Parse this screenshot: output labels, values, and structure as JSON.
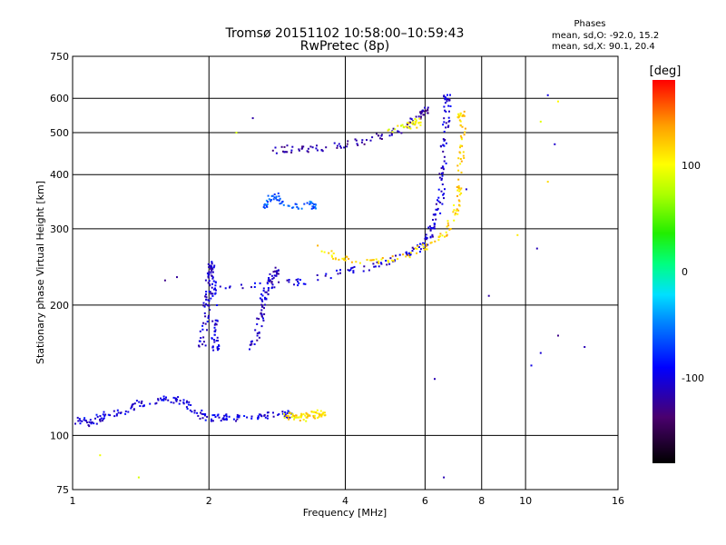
{
  "chart_data": {
    "type": "scatter",
    "title": "Tromsø 20151102 10:58:00–10:59:43",
    "subtitle": "RwPretec (8p)",
    "xlabel": "Frequency [MHz]",
    "ylabel": "Stationary phase Virtual Height [km]",
    "x_scale": "log",
    "y_scale": "log",
    "xlim": [
      1,
      16
    ],
    "ylim": [
      75,
      750
    ],
    "x_ticks": [
      "1",
      "2",
      "4",
      "6",
      "8",
      "10",
      "16"
    ],
    "x_tick_values": [
      1,
      2,
      4,
      6,
      8,
      10,
      16
    ],
    "y_ticks": [
      "750",
      "600",
      "500",
      "400",
      "300",
      "200",
      "100",
      "75"
    ],
    "y_tick_values": [
      750,
      600,
      500,
      400,
      300,
      200,
      100,
      75
    ],
    "grid": true,
    "phase_stats": {
      "heading": "Phases",
      "line1": "mean, sd,O: -92.0, 15.2",
      "line2": "mean, sd,X:  90.1, 20.4"
    },
    "colorbar": {
      "label": "[deg]",
      "range": [
        -180,
        180
      ],
      "ticks": [
        "100",
        "0",
        "-100"
      ],
      "tick_values": [
        100,
        0,
        -100
      ]
    },
    "traces": [
      {
        "name": "E/low-echo band",
        "phase": -100,
        "points": [
          [
            1.0,
            108
          ],
          [
            1.05,
            108
          ],
          [
            1.1,
            107
          ],
          [
            1.15,
            110
          ],
          [
            1.2,
            112
          ],
          [
            1.3,
            114
          ],
          [
            1.4,
            118
          ],
          [
            1.5,
            120
          ],
          [
            1.6,
            122
          ],
          [
            1.7,
            121
          ],
          [
            1.8,
            118
          ],
          [
            1.9,
            112
          ],
          [
            2.0,
            110
          ],
          [
            2.1,
            110
          ],
          [
            2.2,
            110
          ],
          [
            2.4,
            110
          ],
          [
            2.6,
            111
          ],
          [
            2.8,
            112
          ],
          [
            3.0,
            112
          ]
        ]
      },
      {
        "name": "yellow segment near 3 MHz",
        "phase": 110,
        "points": [
          [
            2.95,
            111
          ],
          [
            3.05,
            111
          ],
          [
            3.15,
            110
          ],
          [
            3.25,
            110
          ],
          [
            3.35,
            111
          ],
          [
            3.45,
            112
          ],
          [
            3.55,
            113
          ]
        ]
      },
      {
        "name": "vertical streak 2 MHz",
        "phase": -105,
        "points": [
          [
            1.93,
            160
          ],
          [
            1.95,
            175
          ],
          [
            1.97,
            190
          ],
          [
            1.99,
            205
          ],
          [
            2.0,
            220
          ],
          [
            2.01,
            235
          ],
          [
            2.02,
            250
          ],
          [
            2.03,
            240
          ],
          [
            2.04,
            215
          ],
          [
            2.05,
            195
          ],
          [
            2.06,
            175
          ],
          [
            2.07,
            160
          ]
        ]
      },
      {
        "name": "vertical streak 2.5 MHz",
        "phase": -110,
        "points": [
          [
            2.5,
            160
          ],
          [
            2.55,
            170
          ],
          [
            2.6,
            185
          ],
          [
            2.62,
            200
          ],
          [
            2.65,
            210
          ],
          [
            2.7,
            220
          ],
          [
            2.75,
            230
          ],
          [
            2.8,
            240
          ]
        ]
      },
      {
        "name": "F trace lower branch",
        "phase": -105,
        "points": [
          [
            2.0,
            222
          ],
          [
            2.5,
            222
          ],
          [
            3.0,
            224
          ],
          [
            3.5,
            230
          ],
          [
            4.0,
            238
          ],
          [
            4.5,
            245
          ],
          [
            5.0,
            252
          ],
          [
            5.5,
            262
          ],
          [
            5.8,
            270
          ],
          [
            6.0,
            280
          ],
          [
            6.2,
            295
          ],
          [
            6.3,
            310
          ],
          [
            6.4,
            330
          ],
          [
            6.5,
            360
          ],
          [
            6.55,
            400
          ],
          [
            6.6,
            450
          ],
          [
            6.65,
            500
          ],
          [
            6.7,
            550
          ],
          [
            6.72,
            600
          ]
        ]
      },
      {
        "name": "F trace X mode",
        "phase": 115,
        "points": [
          [
            3.5,
            270
          ],
          [
            3.8,
            258
          ],
          [
            4.2,
            252
          ],
          [
            4.8,
            255
          ],
          [
            5.5,
            262
          ],
          [
            6.0,
            272
          ],
          [
            6.5,
            285
          ],
          [
            6.8,
            300
          ],
          [
            7.0,
            330
          ],
          [
            7.1,
            360
          ],
          [
            7.15,
            400
          ],
          [
            7.2,
            450
          ],
          [
            7.25,
            500
          ],
          [
            7.2,
            550
          ]
        ]
      },
      {
        "name": "upper echo band",
        "phase": -120,
        "points": [
          [
            2.8,
            455
          ],
          [
            3.0,
            458
          ],
          [
            3.3,
            458
          ],
          [
            3.6,
            460
          ],
          [
            4.0,
            470
          ],
          [
            4.5,
            480
          ],
          [
            5.0,
            495
          ],
          [
            5.5,
            520
          ],
          [
            5.8,
            545
          ],
          [
            6.0,
            560
          ]
        ]
      },
      {
        "name": "upper band X mode",
        "phase": 100,
        "points": [
          [
            5.0,
            505
          ],
          [
            5.5,
            515
          ],
          [
            5.8,
            530
          ]
        ]
      },
      {
        "name": "cluster 2.7 MHz",
        "phase": -60,
        "points": [
          [
            2.6,
            330
          ],
          [
            2.7,
            345
          ],
          [
            2.8,
            360
          ],
          [
            2.9,
            340
          ],
          [
            3.2,
            340
          ],
          [
            3.4,
            340
          ]
        ]
      },
      {
        "name": "sparse echoes",
        "phase": -115,
        "points": [
          [
            1.6,
            228
          ],
          [
            1.7,
            232
          ],
          [
            2.5,
            540
          ],
          [
            6.3,
            135
          ],
          [
            7.4,
            370
          ],
          [
            8.3,
            210
          ],
          [
            10.3,
            145
          ],
          [
            10.6,
            270
          ],
          [
            11.2,
            610
          ],
          [
            11.6,
            470
          ],
          [
            11.8,
            170
          ],
          [
            13.5,
            160
          ],
          [
            10.8,
            155
          ],
          [
            6.6,
            80
          ]
        ]
      },
      {
        "name": "sparse X echoes",
        "phase": 105,
        "points": [
          [
            1.15,
            90
          ],
          [
            1.4,
            80
          ],
          [
            2.3,
            500
          ],
          [
            3.3,
            112
          ],
          [
            9.6,
            290
          ],
          [
            10.8,
            530
          ],
          [
            11.2,
            385
          ],
          [
            11.8,
            590
          ]
        ]
      }
    ]
  }
}
